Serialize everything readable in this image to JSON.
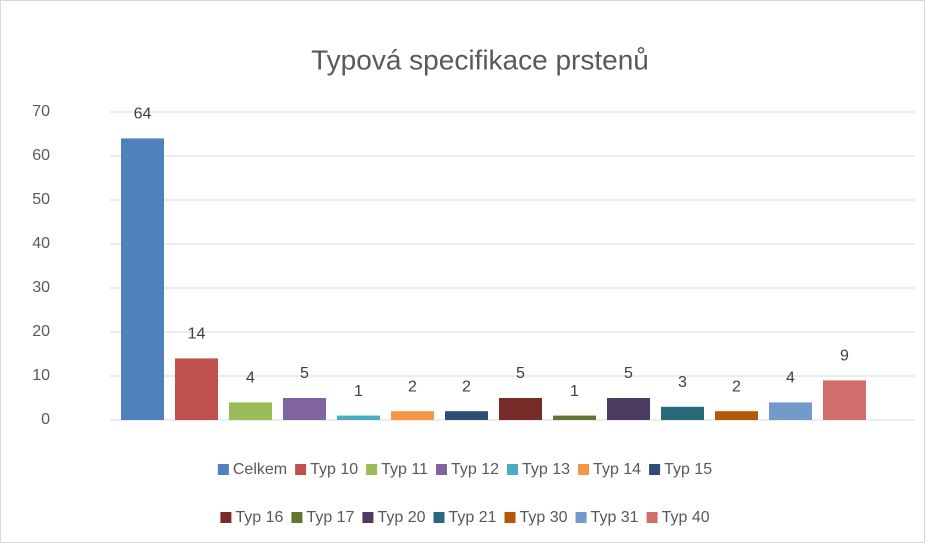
{
  "chart_data": {
    "type": "bar",
    "title": "Typová specifikace prstenů",
    "categories": [
      null
    ],
    "ylim": [
      0,
      70
    ],
    "yticks": [
      0,
      10,
      20,
      30,
      40,
      50,
      60,
      70
    ],
    "grid": true,
    "legend": "bottom",
    "series": [
      {
        "name": "Celkem",
        "color": "#4f81bd",
        "values": [
          64
        ]
      },
      {
        "name": "Typ 10",
        "color": "#c0504d",
        "values": [
          14
        ]
      },
      {
        "name": "Typ 11",
        "color": "#9bbb59",
        "values": [
          4
        ]
      },
      {
        "name": "Typ 12",
        "color": "#8064a2",
        "values": [
          5
        ]
      },
      {
        "name": "Typ 13",
        "color": "#4bacc6",
        "values": [
          1
        ]
      },
      {
        "name": "Typ 14",
        "color": "#f79646",
        "values": [
          2
        ]
      },
      {
        "name": "Typ 15",
        "color": "#2c4d75",
        "values": [
          2
        ]
      },
      {
        "name": "Typ 16",
        "color": "#772c2a",
        "values": [
          5
        ]
      },
      {
        "name": "Typ 17",
        "color": "#5f7530",
        "values": [
          1
        ]
      },
      {
        "name": "Typ 20",
        "color": "#4d3b62",
        "values": [
          5
        ]
      },
      {
        "name": "Typ 21",
        "color": "#276a7c",
        "values": [
          3
        ]
      },
      {
        "name": "Typ 30",
        "color": "#b65708",
        "values": [
          2
        ]
      },
      {
        "name": "Typ 31",
        "color": "#729aca",
        "values": [
          4
        ]
      },
      {
        "name": "Typ 40",
        "color": "#d16d6a",
        "values": [
          9
        ]
      }
    ]
  }
}
